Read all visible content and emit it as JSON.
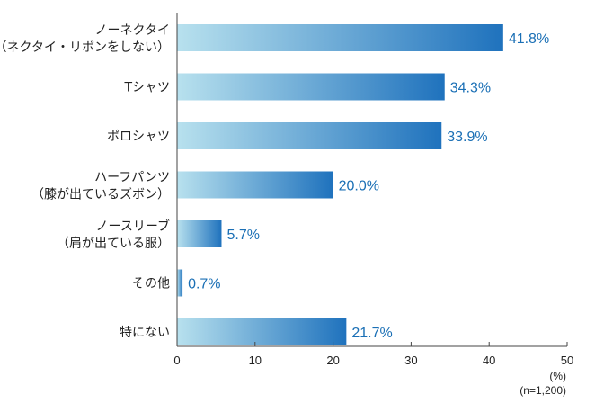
{
  "chart_data": {
    "type": "bar",
    "orientation": "horizontal",
    "categories": [
      [
        "ノーネクタイ",
        "（ネクタイ・リボンをしない）"
      ],
      [
        "Tシャツ"
      ],
      [
        "ポロシャツ"
      ],
      [
        "ハーフパンツ",
        "（膝が出ているズボン）"
      ],
      [
        "ノースリーブ",
        "（肩が出ている服）"
      ],
      [
        "その他"
      ],
      [
        "特にない"
      ]
    ],
    "values": [
      41.8,
      34.3,
      33.9,
      20.0,
      5.7,
      0.7,
      21.7
    ],
    "value_labels": [
      "41.8%",
      "34.3%",
      "33.9%",
      "20.0%",
      "5.7%",
      "0.7%",
      "21.7%"
    ],
    "xlim": [
      0,
      50
    ],
    "xticks": [
      0,
      10,
      20,
      30,
      40,
      50
    ],
    "unit_label": "(%)",
    "sample_note": "(n=1,200)",
    "grid": false,
    "colors": {
      "bar_start": "#b8e1ee",
      "bar_end": "#1f72bd",
      "value_text": "#1a6fb5",
      "axis": "#444444"
    }
  }
}
